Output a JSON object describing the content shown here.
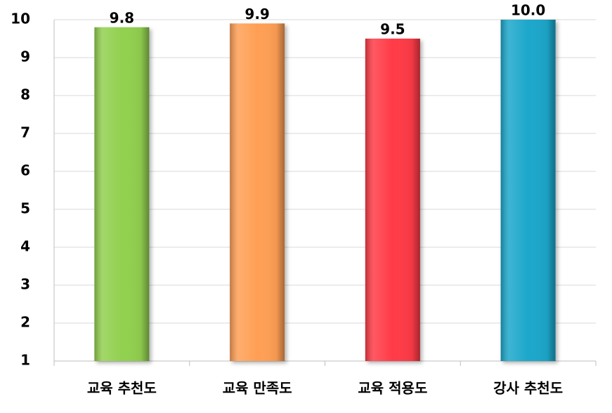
{
  "chart_data": {
    "type": "bar",
    "categories": [
      "교육 추천도",
      "교육 만족도",
      "교육 적용도",
      "강사 추천도"
    ],
    "values": [
      9.8,
      9.9,
      9.5,
      10.0
    ],
    "value_labels": [
      "9.8",
      "9.9",
      "9.5",
      "10.0"
    ],
    "colors": [
      "#92d050",
      "#ff9f55",
      "#ff3b47",
      "#1ba7cb"
    ],
    "ylim": [
      1,
      10
    ],
    "yticks": [
      1,
      2,
      3,
      4,
      5,
      6,
      7,
      8,
      9,
      10
    ],
    "grid": true
  }
}
